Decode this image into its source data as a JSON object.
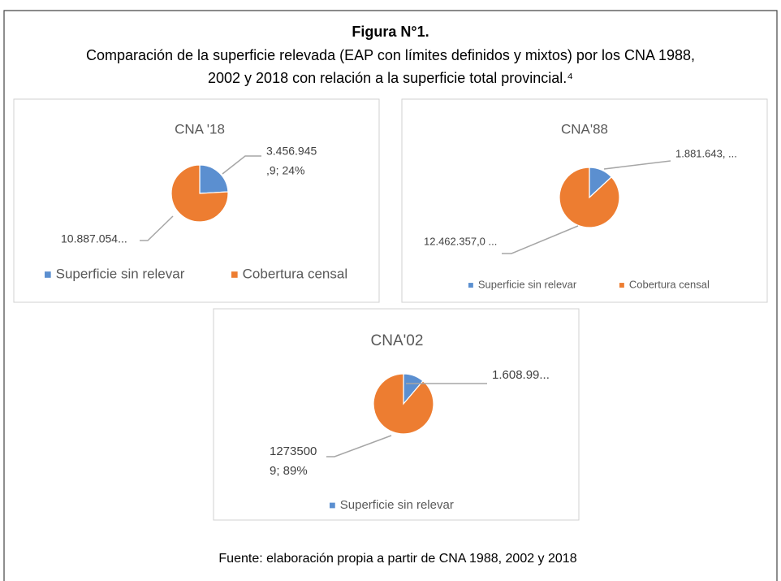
{
  "figure_title": "Figura N°1.",
  "subtitle_lines": [
    "Comparación de la superficie relevada (EAP con límites definidos y mixtos) por los CNA 1988,",
    "2002 y 2018 con relación a la superficie total provincial.⁴"
  ],
  "source": "Fuente: elaboración propia a partir de CNA 1988, 2002 y 2018",
  "chart_data": [
    {
      "type": "pie",
      "title": "CNA '18",
      "categories": [
        "Superficie sin relevar",
        "Cobertura censal"
      ],
      "values": [
        3456945.9,
        10887054
      ],
      "value_labels": [
        [
          "3.456.945",
          ",9; 24%"
        ],
        [
          "10.887.054..."
        ]
      ],
      "colors": [
        "#5b8fd0",
        "#ed7d31"
      ],
      "legend": "bottom"
    },
    {
      "type": "pie",
      "title": "CNA'88",
      "categories": [
        "Superficie sin relevar",
        "Cobertura censal"
      ],
      "values": [
        1881643,
        12462357
      ],
      "value_labels": [
        [
          "1.881.643, ..."
        ],
        [
          "12.462.357,0 ..."
        ]
      ],
      "colors": [
        "#5b8fd0",
        "#ed7d31"
      ],
      "legend": "bottom"
    },
    {
      "type": "pie",
      "title": "CNA'02",
      "categories": [
        "Superficie sin relevar",
        null
      ],
      "values": [
        1608990,
        12735009
      ],
      "value_labels": [
        [
          "1.608.99..."
        ],
        [
          "1273500",
          "9; 89%"
        ]
      ],
      "colors": [
        "#5b8fd0",
        "#ed7d31"
      ],
      "legend": "bottom"
    }
  ]
}
